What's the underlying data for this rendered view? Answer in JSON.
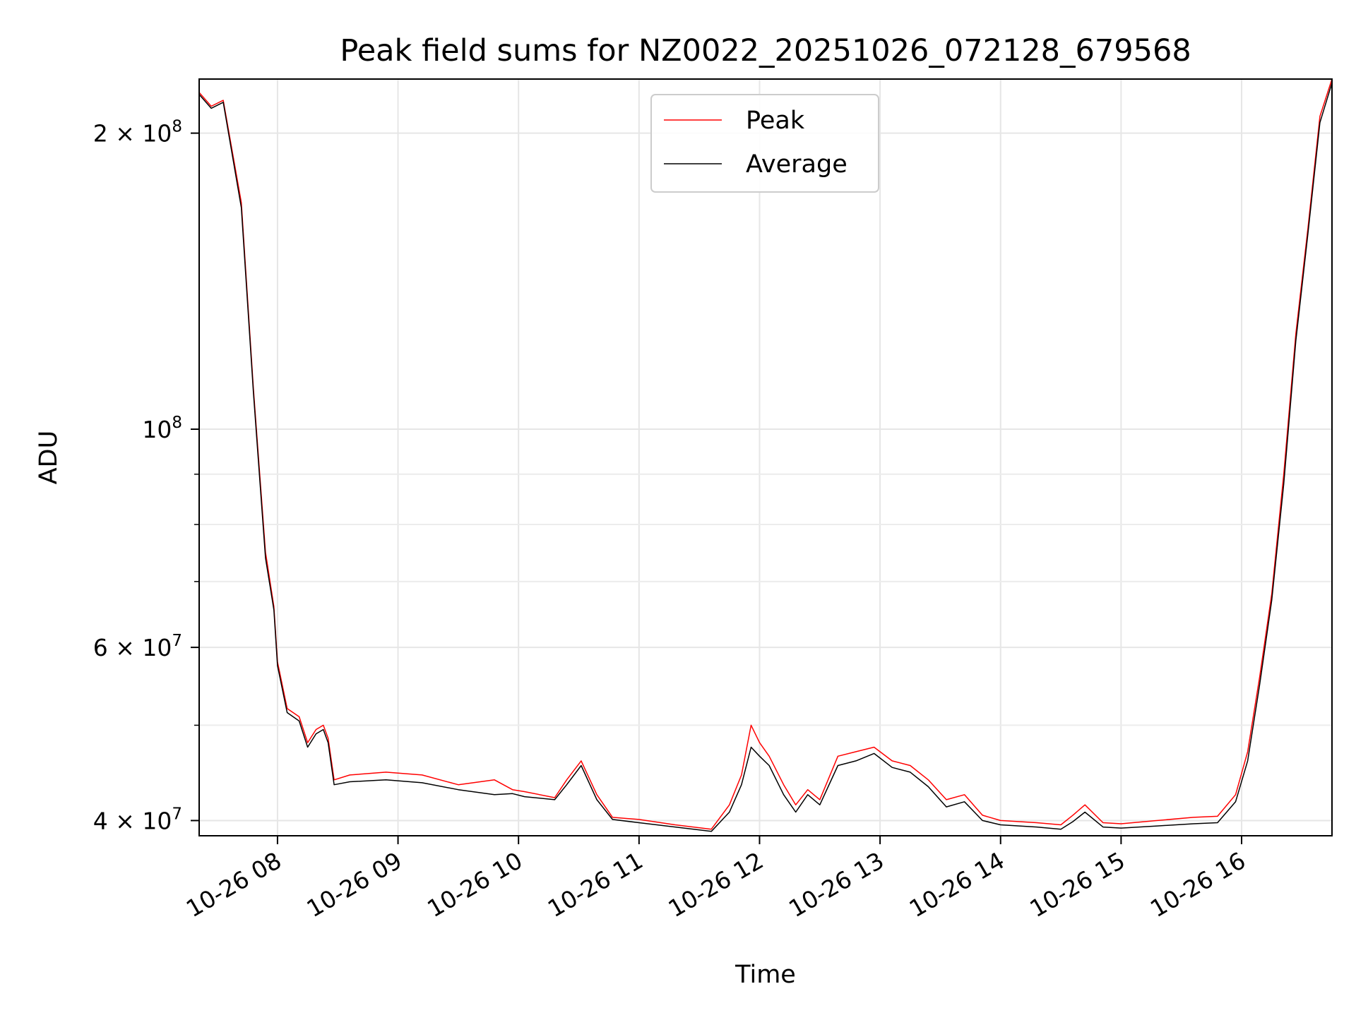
{
  "chart_data": {
    "type": "line",
    "title": "Peak field sums for NZ0022_20251026_072128_679568",
    "xlabel": "Time",
    "ylabel": "ADU",
    "yscale": "log",
    "xlim": [
      7.35,
      16.75
    ],
    "ylim": [
      38600000,
      227000000
    ],
    "grid": true,
    "legend_position": "top-center",
    "x_ticks": [
      8,
      9,
      10,
      11,
      12,
      13,
      14,
      15,
      16
    ],
    "x_tick_labels": [
      "10-26 08",
      "10-26 09",
      "10-26 10",
      "10-26 11",
      "10-26 12",
      "10-26 13",
      "10-26 14",
      "10-26 15",
      "10-26 16"
    ],
    "y_major_ticks": [
      {
        "value": 40000000,
        "base": "4 × 10",
        "exp": "7"
      },
      {
        "value": 60000000,
        "base": "6 × 10",
        "exp": "7"
      },
      {
        "value": 100000000,
        "base": "10",
        "exp": "8"
      },
      {
        "value": 200000000,
        "base": "2 × 10",
        "exp": "8"
      }
    ],
    "y_minor_ticks": [
      50000000,
      70000000,
      80000000,
      90000000
    ],
    "colors": {
      "peak": "#ff0000",
      "average": "#000000"
    },
    "series": [
      {
        "name": "Peak",
        "color": "#ff0000",
        "x": [
          7.35,
          7.45,
          7.55,
          7.7,
          7.8,
          7.9,
          7.97,
          8.0,
          8.08,
          8.18,
          8.25,
          8.32,
          8.38,
          8.42,
          8.47,
          8.6,
          8.9,
          9.2,
          9.5,
          9.8,
          9.95,
          10.05,
          10.3,
          10.4,
          10.52,
          10.65,
          10.78,
          11.0,
          11.3,
          11.6,
          11.75,
          11.85,
          11.93,
          12.0,
          12.08,
          12.2,
          12.3,
          12.4,
          12.5,
          12.65,
          12.8,
          12.95,
          13.1,
          13.25,
          13.4,
          13.55,
          13.7,
          13.85,
          14.0,
          14.3,
          14.5,
          14.6,
          14.7,
          14.85,
          15.0,
          15.3,
          15.6,
          15.8,
          15.95,
          16.05,
          16.15,
          16.25,
          16.35,
          16.45,
          16.55,
          16.65,
          16.75
        ],
        "values": [
          220000000,
          213000000,
          216000000,
          170000000,
          110000000,
          75000000,
          66000000,
          58000000,
          52000000,
          51000000,
          48000000,
          49500000,
          50000000,
          48500000,
          44000000,
          44500000,
          44800000,
          44500000,
          43500000,
          44000000,
          43000000,
          42800000,
          42200000,
          44000000,
          46000000,
          42500000,
          40300000,
          40100000,
          39600000,
          39200000,
          41500000,
          44500000,
          50000000,
          48000000,
          46500000,
          43500000,
          41500000,
          43000000,
          42000000,
          46500000,
          47000000,
          47500000,
          46000000,
          45500000,
          44000000,
          42000000,
          42500000,
          40500000,
          40000000,
          39800000,
          39600000,
          40500000,
          41500000,
          39800000,
          39700000,
          40000000,
          40300000,
          40400000,
          42500000,
          47000000,
          56000000,
          68000000,
          90000000,
          125000000,
          160000000,
          208000000,
          227000000
        ]
      },
      {
        "name": "Average",
        "color": "#000000",
        "x": [
          7.35,
          7.45,
          7.55,
          7.7,
          7.8,
          7.9,
          7.97,
          8.0,
          8.08,
          8.18,
          8.25,
          8.32,
          8.38,
          8.42,
          8.47,
          8.6,
          8.9,
          9.2,
          9.5,
          9.8,
          9.95,
          10.05,
          10.3,
          10.4,
          10.52,
          10.65,
          10.78,
          11.0,
          11.3,
          11.6,
          11.75,
          11.85,
          11.93,
          12.0,
          12.08,
          12.2,
          12.3,
          12.4,
          12.5,
          12.65,
          12.8,
          12.95,
          13.1,
          13.25,
          13.4,
          13.55,
          13.7,
          13.85,
          14.0,
          14.3,
          14.5,
          14.6,
          14.7,
          14.85,
          15.0,
          15.3,
          15.6,
          15.8,
          15.95,
          16.05,
          16.15,
          16.25,
          16.35,
          16.45,
          16.55,
          16.65,
          16.75
        ],
        "values": [
          219000000,
          212000000,
          215000000,
          168000000,
          109000000,
          74000000,
          65500000,
          57500000,
          51500000,
          50500000,
          47500000,
          49000000,
          49500000,
          48000000,
          43500000,
          43800000,
          44000000,
          43700000,
          43000000,
          42500000,
          42600000,
          42300000,
          42000000,
          43500000,
          45500000,
          42000000,
          40100000,
          39800000,
          39400000,
          39000000,
          40800000,
          43500000,
          47500000,
          46500000,
          45500000,
          42500000,
          40800000,
          42500000,
          41500000,
          45500000,
          46000000,
          46800000,
          45300000,
          44800000,
          43300000,
          41300000,
          41800000,
          40000000,
          39600000,
          39400000,
          39200000,
          39900000,
          40800000,
          39400000,
          39300000,
          39500000,
          39700000,
          39800000,
          41800000,
          46000000,
          55000000,
          67000000,
          88000000,
          123000000,
          158000000,
          205000000,
          225000000
        ]
      }
    ]
  },
  "legend": [
    {
      "label": "Peak",
      "color": "#ff0000"
    },
    {
      "label": "Average",
      "color": "#000000"
    }
  ]
}
